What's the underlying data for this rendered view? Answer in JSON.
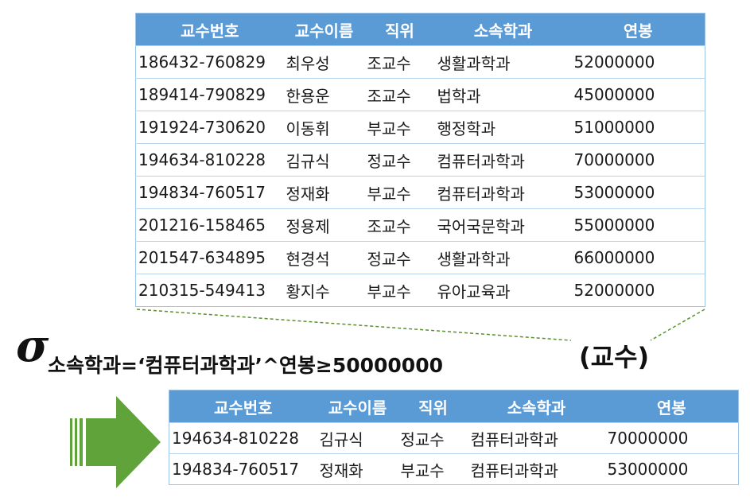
{
  "top_table": {
    "headers": [
      "교수번호",
      "교수이름",
      "직위",
      "소속학과",
      "연봉"
    ],
    "rows": [
      [
        "186432-760829",
        "최우성",
        "조교수",
        "생활과학과",
        "52000000"
      ],
      [
        "189414-790829",
        "한용운",
        "조교수",
        "법학과",
        "45000000"
      ],
      [
        "191924-730620",
        "이동휘",
        "부교수",
        "행정학과",
        "51000000"
      ],
      [
        "194634-810228",
        "김규식",
        "정교수",
        "컴퓨터과학과",
        "70000000"
      ],
      [
        "194834-760517",
        "정재화",
        "부교수",
        "컴퓨터과학과",
        "53000000"
      ],
      [
        "201216-158465",
        "정용제",
        "조교수",
        "국어국문학과",
        "55000000"
      ],
      [
        "201547-634895",
        "현경석",
        "정교수",
        "생활과학과",
        "66000000"
      ],
      [
        "210315-549413",
        "황지수",
        "부교수",
        "유아교육과",
        "52000000"
      ]
    ]
  },
  "expression": {
    "sigma": "σ",
    "condition": "소속학과=‘컴퓨터과학과’^연봉≥50000000",
    "relation": "(교수)"
  },
  "result_table": {
    "headers": [
      "교수번호",
      "교수이름",
      "직위",
      "소속학과",
      "연봉"
    ],
    "rows": [
      [
        "194634-810228",
        "김규식",
        "정교수",
        "컴퓨터과학과",
        "70000000"
      ],
      [
        "194834-760517",
        "정재화",
        "부교수",
        "컴퓨터과학과",
        "53000000"
      ]
    ]
  },
  "colors": {
    "header_bg": "#5b9bd5",
    "header_text": "#ffffff",
    "border": "#9dc3e6",
    "arrow": "#5fa33a",
    "connector": "#5a8f2e"
  }
}
